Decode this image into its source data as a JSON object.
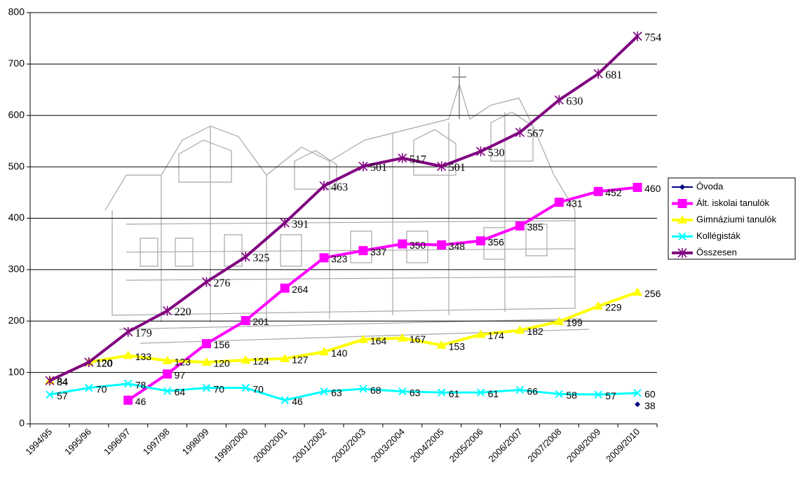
{
  "chart_data": {
    "type": "line",
    "categories": [
      "1994/95",
      "1995/96",
      "1996/97",
      "1997/98",
      "1998/99",
      "1999/2000",
      "2000/2001",
      "2001/2002",
      "2002/2003",
      "2003/2004",
      "2004/2005",
      "2005/2006",
      "2006/2007",
      "2007/2008",
      "2008/2009",
      "2009/2010"
    ],
    "ylim": [
      0,
      800
    ],
    "yticks": [
      0,
      100,
      200,
      300,
      400,
      500,
      600,
      700,
      800
    ],
    "grid": true,
    "legend_position": "right",
    "series": [
      {
        "name": "Óvoda",
        "color": "#000080",
        "marker": "diamond",
        "values": [
          null,
          null,
          null,
          null,
          null,
          null,
          null,
          null,
          null,
          null,
          null,
          null,
          null,
          null,
          null,
          38
        ]
      },
      {
        "name": "Ált. iskolai tanulók",
        "color": "#FF00FF",
        "marker": "square",
        "values": [
          null,
          null,
          46,
          97,
          156,
          201,
          264,
          323,
          337,
          350,
          348,
          356,
          385,
          431,
          452,
          460
        ]
      },
      {
        "name": "Gimnáziumi tanulók",
        "color": "#FFFF00",
        "marker": "triangle",
        "values": [
          84,
          120,
          133,
          123,
          120,
          124,
          127,
          140,
          164,
          167,
          153,
          174,
          182,
          199,
          229,
          256
        ]
      },
      {
        "name": "Kollégisták",
        "color": "#00FFFF",
        "marker": "x",
        "values": [
          57,
          70,
          78,
          64,
          70,
          70,
          46,
          63,
          68,
          63,
          61,
          61,
          66,
          58,
          57,
          60
        ]
      },
      {
        "name": "Összesen",
        "color": "#800080",
        "marker": "star",
        "values": [
          84,
          120,
          179,
          220,
          276,
          325,
          391,
          463,
          501,
          517,
          501,
          530,
          567,
          630,
          681,
          754
        ]
      }
    ]
  }
}
